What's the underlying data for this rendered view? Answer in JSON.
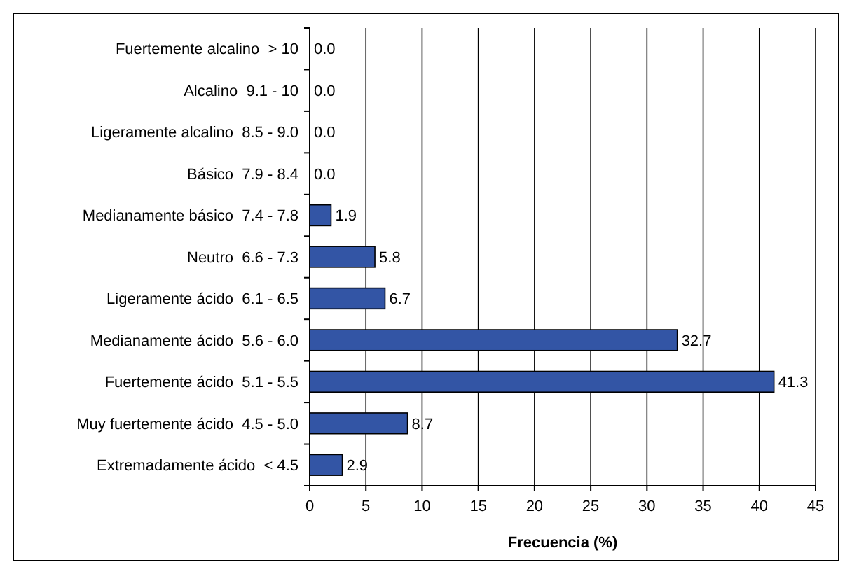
{
  "chart_data": {
    "type": "bar",
    "orientation": "horizontal",
    "xlabel": "Frecuencia (%)",
    "categories": [
      "Fuertemente alcalino  > 10",
      "Alcalino  9.1 - 10",
      "Ligeramente alcalino  8.5 - 9.0",
      "Básico  7.9 - 8.4",
      "Medianamente básico  7.4 - 7.8",
      "Neutro  6.6 - 7.3",
      "Ligeramente ácido  6.1 - 6.5",
      "Medianamente ácido  5.6 - 6.0",
      "Fuertemente ácido  5.1 - 5.5",
      "Muy fuertemente ácido  4.5 - 5.0",
      "Extremadamente ácido  < 4.5"
    ],
    "values": [
      0,
      0,
      0,
      0,
      1.9,
      5.8,
      6.7,
      32.7,
      41.3,
      8.7,
      2.9
    ],
    "value_labels": [
      "0.0",
      "0.0",
      "0.0",
      "0.0",
      "1.9",
      "5.8",
      "6.7",
      "32.7",
      "41.3",
      "8.7",
      "2.9"
    ],
    "color": "#3355a5",
    "xlim": [
      0,
      45
    ],
    "xticks": [
      0,
      5,
      10,
      15,
      20,
      25,
      30,
      35,
      40,
      45
    ],
    "grid": "x"
  }
}
